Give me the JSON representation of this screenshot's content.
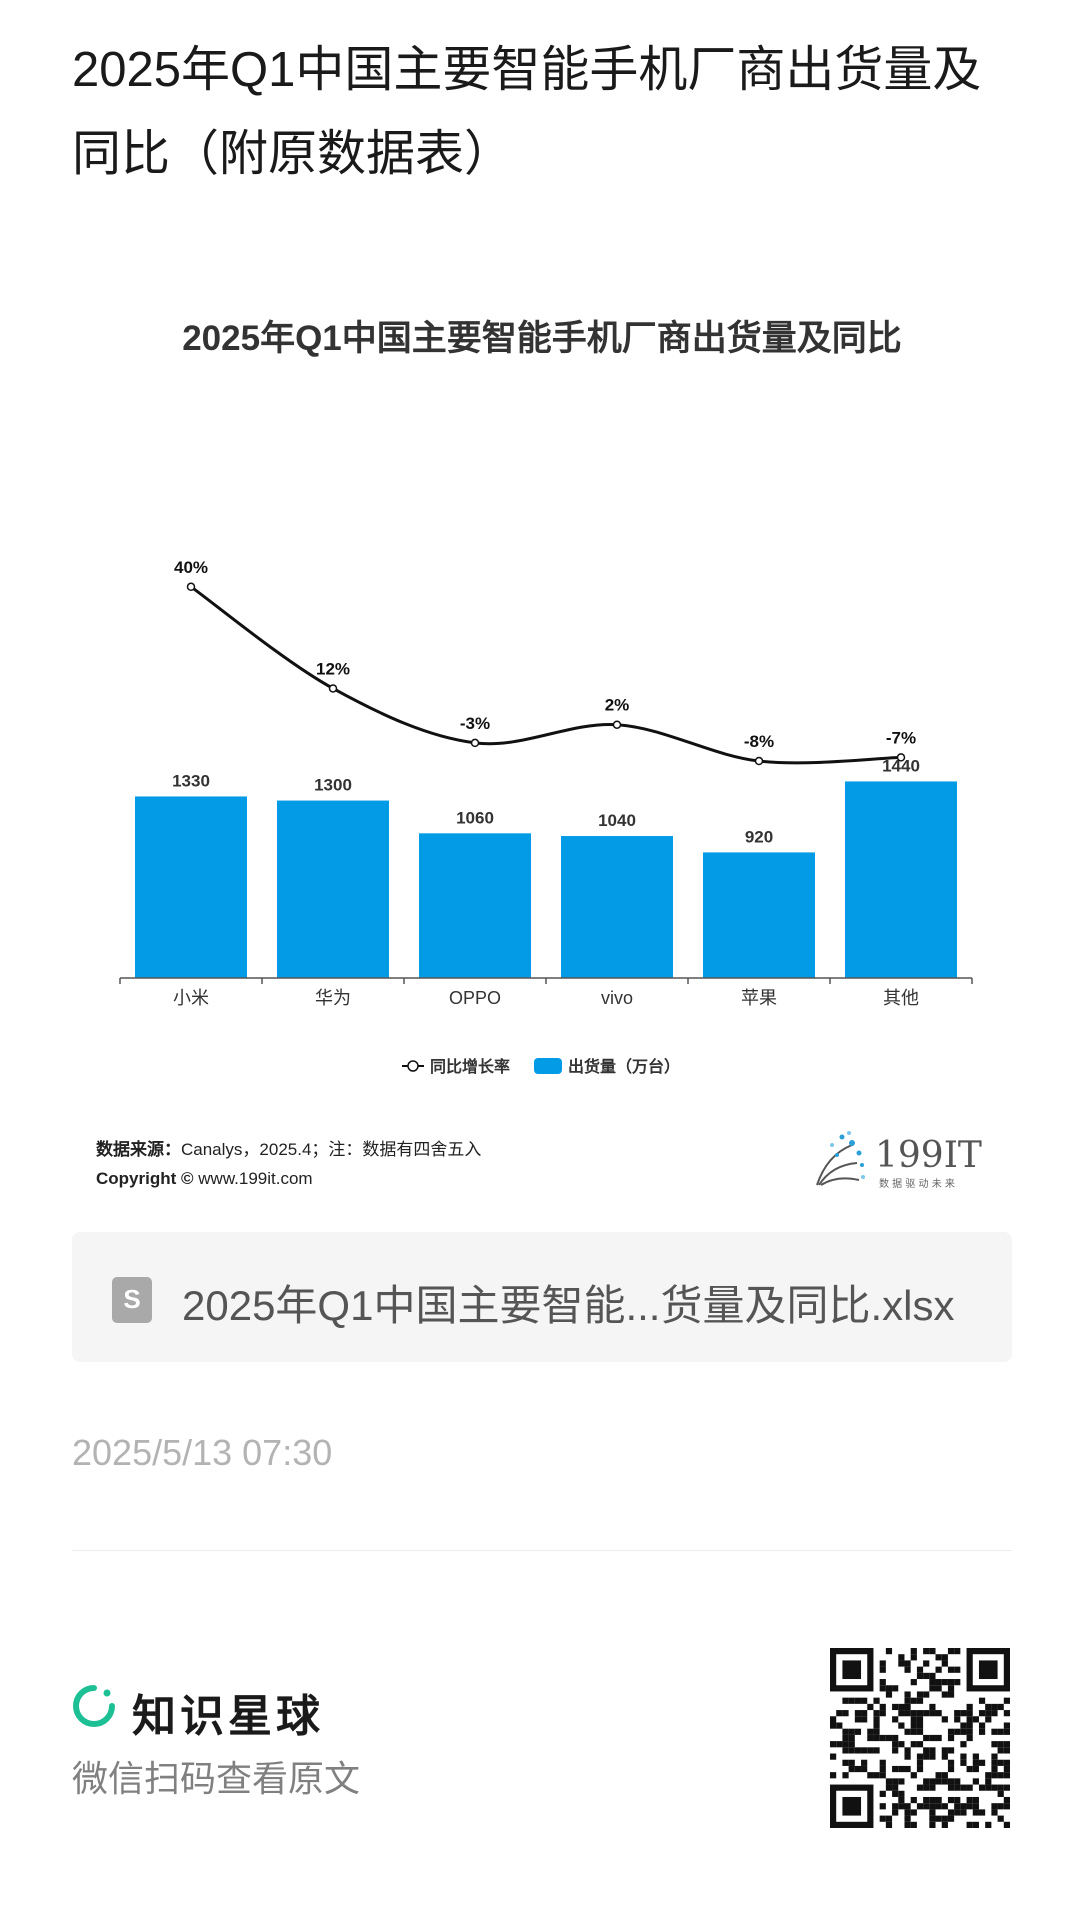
{
  "page": {
    "title": "2025年Q1中国主要智能手机厂商出货量及同比（附原数据表）"
  },
  "chart_data": {
    "type": "bar",
    "title": "2025年Q1中国主要智能手机厂商出货量及同比",
    "categories": [
      "小米",
      "华为",
      "OPPO",
      "vivo",
      "苹果",
      "其他"
    ],
    "series": [
      {
        "name": "出货量（万台）",
        "type": "bar",
        "values": [
          1330,
          1300,
          1060,
          1040,
          920,
          1440
        ],
        "color": "#039be5"
      },
      {
        "name": "同比增长率",
        "type": "line",
        "values": [
          40,
          12,
          -3,
          2,
          -8,
          -7
        ],
        "unit": "%",
        "color": "#111111"
      }
    ],
    "legend_position": "bottom-center",
    "grid": false
  },
  "source": {
    "label": "数据来源：",
    "text": "Canalys，2025.4；注：数据有四舍五入",
    "copyright_label": "Copyright ©",
    "copyright_text": "www.199it.com"
  },
  "brand": {
    "name": "199IT",
    "slogan": "数 据 驱 动 未 来"
  },
  "file": {
    "name": "2025年Q1中国主要智能...货量及同比.xlsx"
  },
  "timestamp": "2025/5/13 07:30",
  "footer": {
    "brand": "知识星球",
    "scan_text": "微信扫码查看原文",
    "accent": "#1dbf94"
  }
}
